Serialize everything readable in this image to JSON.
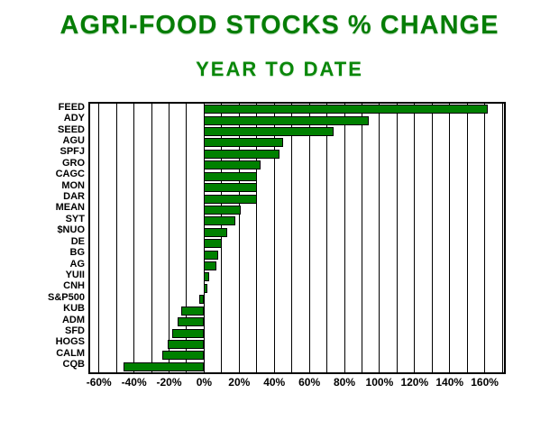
{
  "title": "AGRI-FOOD STOCKS % CHANGE",
  "subtitle": "YEAR TO DATE",
  "colors": {
    "title_text": "#067d06",
    "bar_fill": "#008000",
    "bar_border": "#000000",
    "grid": "#000000",
    "axis_text": "#000000",
    "background": "#ffffff"
  },
  "chart_data": {
    "type": "bar",
    "orientation": "horizontal",
    "title": "AGRI-FOOD STOCKS % CHANGE",
    "subtitle": "YEAR TO DATE",
    "xlabel": "",
    "ylabel": "",
    "categories": [
      "FEED",
      "ADY",
      "SEED",
      "AGU",
      "SPFJ",
      "GRO",
      "CAGC",
      "MON",
      "DAR",
      "MEAN",
      "SYT",
      "$NUO",
      "DE",
      "BG",
      "AG",
      "YUII",
      "CNH",
      "S&P500",
      "KUB",
      "ADM",
      "SFD",
      "HOGS",
      "CALM",
      "CQB"
    ],
    "values": [
      162,
      94,
      74,
      45,
      43,
      32,
      30,
      30,
      30,
      21,
      18,
      13,
      10,
      8,
      7,
      3,
      2,
      -3,
      -13,
      -15,
      -18,
      -21,
      -24,
      -46
    ],
    "value_unit": "%",
    "xlim": [
      -65,
      171
    ],
    "gridline_step": 10,
    "grid": true,
    "legend": false,
    "x_tick_values": [
      -60,
      -40,
      -20,
      0,
      20,
      40,
      60,
      80,
      100,
      120,
      140,
      160
    ],
    "x_tick_labels": [
      "-60%",
      "-40%",
      "-20%",
      "0%",
      "20%",
      "40%",
      "60%",
      "80%",
      "100%",
      "120%",
      "140%",
      "160%"
    ]
  }
}
